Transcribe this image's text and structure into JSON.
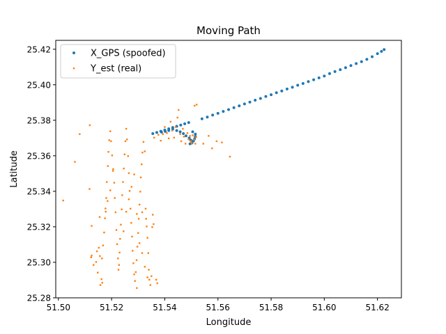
{
  "chart_data": {
    "type": "scatter",
    "title": "Moving Path",
    "xlabel": "Longitude",
    "ylabel": "Latitude",
    "xlim": [
      51.499,
      51.629
    ],
    "ylim": [
      25.28,
      25.425
    ],
    "xticks": [
      51.5,
      51.52,
      51.54,
      51.56,
      51.58,
      51.6,
      51.62
    ],
    "yticks": [
      25.28,
      25.3,
      25.32,
      25.34,
      25.36,
      25.38,
      25.4,
      25.42
    ],
    "grid": false,
    "legend": "top-left",
    "series": [
      {
        "name": "X_GPS (spoofed)",
        "color": "#1f77b4",
        "marker": "circle",
        "points": [
          [
            51.5355,
            25.3725
          ],
          [
            51.537,
            25.3731
          ],
          [
            51.5385,
            25.3738
          ],
          [
            51.54,
            25.3745
          ],
          [
            51.5415,
            25.3752
          ],
          [
            51.543,
            25.3759
          ],
          [
            51.5445,
            25.3766
          ],
          [
            51.546,
            25.3773
          ],
          [
            51.5475,
            25.378
          ],
          [
            51.549,
            25.3787
          ],
          [
            51.5505,
            25.3735
          ],
          [
            51.5515,
            25.3722
          ],
          [
            51.5515,
            25.3708
          ],
          [
            51.5512,
            25.3695
          ],
          [
            51.5508,
            25.3683
          ],
          [
            51.5502,
            25.3672
          ],
          [
            51.5495,
            25.3667
          ],
          [
            51.5502,
            25.3675
          ],
          [
            51.5498,
            25.3688
          ],
          [
            51.5492,
            25.37
          ],
          [
            51.548,
            25.3712
          ],
          [
            51.547,
            25.3725
          ],
          [
            51.5458,
            25.3735
          ],
          [
            51.5445,
            25.3742
          ],
          [
            51.543,
            25.375
          ],
          [
            51.5415,
            25.3742
          ],
          [
            51.5402,
            25.3737
          ],
          [
            51.5388,
            25.3733
          ],
          [
            51.554,
            25.3808
          ],
          [
            51.556,
            25.3818
          ],
          [
            51.558,
            25.3829
          ],
          [
            51.56,
            25.3839
          ],
          [
            51.562,
            25.385
          ],
          [
            51.564,
            25.386
          ],
          [
            51.566,
            25.3871
          ],
          [
            51.568,
            25.3881
          ],
          [
            51.57,
            25.3892
          ],
          [
            51.572,
            25.3902
          ],
          [
            51.574,
            25.3913
          ],
          [
            51.576,
            25.3923
          ],
          [
            51.578,
            25.3934
          ],
          [
            51.58,
            25.3944
          ],
          [
            51.582,
            25.3955
          ],
          [
            51.584,
            25.3965
          ],
          [
            51.586,
            25.3976
          ],
          [
            51.588,
            25.3986
          ],
          [
            51.59,
            25.3997
          ],
          [
            51.592,
            25.4007
          ],
          [
            51.594,
            25.4018
          ],
          [
            51.596,
            25.4028
          ],
          [
            51.598,
            25.4039
          ],
          [
            51.6,
            25.4049
          ],
          [
            51.602,
            25.4063
          ],
          [
            51.604,
            25.4074
          ],
          [
            51.606,
            25.4085
          ],
          [
            51.608,
            25.4096
          ],
          [
            51.61,
            25.4108
          ],
          [
            51.612,
            25.4119
          ],
          [
            51.614,
            25.413
          ],
          [
            51.616,
            25.4143
          ],
          [
            51.618,
            25.4158
          ],
          [
            51.62,
            25.4175
          ],
          [
            51.6215,
            25.4188
          ],
          [
            51.6225,
            25.4198
          ]
        ]
      },
      {
        "name": "Y_est (real)",
        "color": "#ff7f0e",
        "marker": "square",
        "points": [
          [
            51.5018,
            25.3348
          ],
          [
            51.5062,
            25.3566
          ],
          [
            51.508,
            25.3722
          ],
          [
            51.5118,
            25.3772
          ],
          [
            51.5117,
            25.3413
          ],
          [
            51.5125,
            25.3205
          ],
          [
            51.5123,
            25.3028
          ],
          [
            51.5125,
            25.3038
          ],
          [
            51.5132,
            25.2985
          ],
          [
            51.5142,
            25.3002
          ],
          [
            51.5145,
            25.3062
          ],
          [
            51.5148,
            25.2942
          ],
          [
            51.5152,
            25.3082
          ],
          [
            51.5156,
            25.3035
          ],
          [
            51.5158,
            25.2872
          ],
          [
            51.5162,
            25.2905
          ],
          [
            51.5164,
            25.3022
          ],
          [
            51.5168,
            25.3095
          ],
          [
            51.5172,
            25.3168
          ],
          [
            51.5175,
            25.3248
          ],
          [
            51.5177,
            25.3303
          ],
          [
            51.5178,
            25.3285
          ],
          [
            51.518,
            25.3362
          ],
          [
            51.5182,
            25.3452
          ],
          [
            51.5186,
            25.3542
          ],
          [
            51.5188,
            25.3622
          ],
          [
            51.5191,
            25.3688
          ],
          [
            51.5195,
            25.3738
          ],
          [
            51.5198,
            25.3682
          ],
          [
            51.5202,
            25.3602
          ],
          [
            51.5206,
            25.3525
          ],
          [
            51.521,
            25.3448
          ],
          [
            51.5212,
            25.3362
          ],
          [
            51.5215,
            25.3282
          ],
          [
            51.5218,
            25.3182
          ],
          [
            51.5221,
            25.3102
          ],
          [
            51.5224,
            25.3022
          ],
          [
            51.5226,
            25.2958
          ],
          [
            51.5228,
            25.2985
          ],
          [
            51.523,
            25.3055
          ],
          [
            51.5232,
            25.3132
          ],
          [
            51.5235,
            25.3212
          ],
          [
            51.5238,
            25.3298
          ],
          [
            51.524,
            25.3378
          ],
          [
            51.5243,
            25.3452
          ],
          [
            51.5246,
            25.3528
          ],
          [
            51.5249,
            25.3608
          ],
          [
            51.5252,
            25.3682
          ],
          [
            51.5255,
            25.3752
          ],
          [
            51.5258,
            25.3692
          ],
          [
            51.5262,
            25.3598
          ],
          [
            51.5265,
            25.3502
          ],
          [
            51.5268,
            25.3402
          ],
          [
            51.5271,
            25.3302
          ],
          [
            51.5274,
            25.3222
          ],
          [
            51.5277,
            25.3145
          ],
          [
            51.5279,
            25.3065
          ],
          [
            51.5282,
            25.2995
          ],
          [
            51.5285,
            25.2932
          ],
          [
            51.5288,
            25.2895
          ],
          [
            51.5291,
            25.2945
          ],
          [
            51.5294,
            25.3012
          ],
          [
            51.5297,
            25.3088
          ],
          [
            51.53,
            25.3165
          ],
          [
            51.5302,
            25.3245
          ],
          [
            51.5305,
            25.3325
          ],
          [
            51.5308,
            25.3398
          ],
          [
            51.531,
            25.3478
          ],
          [
            51.5313,
            25.3552
          ],
          [
            51.5316,
            25.3618
          ],
          [
            51.532,
            25.3678
          ],
          [
            51.5325,
            25.3625
          ],
          [
            51.5328,
            25.3302
          ],
          [
            51.533,
            25.3245
          ],
          [
            51.5332,
            25.3202
          ],
          [
            51.5335,
            25.3138
          ],
          [
            51.5338,
            25.3052
          ],
          [
            51.534,
            25.2958
          ],
          [
            51.5342,
            25.2902
          ],
          [
            51.5346,
            25.2872
          ],
          [
            51.535,
            25.2922
          ],
          [
            51.5353,
            25.3198
          ],
          [
            51.5355,
            25.3268
          ],
          [
            51.5358,
            25.3215
          ],
          [
            51.536,
            25.3702
          ],
          [
            51.5368,
            25.2902
          ],
          [
            51.5372,
            25.2882
          ],
          [
            51.5376,
            25.3718
          ],
          [
            51.5385,
            25.3685
          ],
          [
            51.5393,
            25.3722
          ],
          [
            51.54,
            25.3762
          ],
          [
            51.5408,
            25.3728
          ],
          [
            51.5415,
            25.3698
          ],
          [
            51.5422,
            25.3792
          ],
          [
            51.5428,
            25.3742
          ],
          [
            51.5435,
            25.3702
          ],
          [
            51.5441,
            25.3762
          ],
          [
            51.5448,
            25.3815
          ],
          [
            51.5452,
            25.3858
          ],
          [
            51.5458,
            25.3722
          ],
          [
            51.5462,
            25.3682
          ],
          [
            51.5468,
            25.3752
          ],
          [
            51.5472,
            25.3708
          ],
          [
            51.5478,
            25.3668
          ],
          [
            51.5485,
            25.3728
          ],
          [
            51.549,
            25.3692
          ],
          [
            51.5495,
            25.3712
          ],
          [
            51.5498,
            25.3682
          ],
          [
            51.5501,
            25.3672
          ],
          [
            51.5505,
            25.3715
          ],
          [
            51.551,
            25.3692
          ],
          [
            51.5512,
            25.3882
          ],
          [
            51.5515,
            25.3668
          ],
          [
            51.5518,
            25.3705
          ],
          [
            51.552,
            25.3888
          ],
          [
            51.5545,
            25.3668
          ],
          [
            51.5565,
            25.3712
          ],
          [
            51.5578,
            25.3642
          ],
          [
            51.5595,
            25.3682
          ],
          [
            51.5615,
            25.3675
          ],
          [
            51.5645,
            25.3595
          ],
          [
            51.5155,
            25.3255
          ],
          [
            51.5165,
            25.2885
          ],
          [
            51.5185,
            25.3345
          ],
          [
            51.5195,
            25.3405
          ],
          [
            51.5205,
            25.3515
          ],
          [
            51.5245,
            25.3175
          ],
          [
            51.5255,
            25.3285
          ],
          [
            51.5265,
            25.3355
          ],
          [
            51.5275,
            25.3425
          ],
          [
            51.5285,
            25.3495
          ],
          [
            51.5295,
            25.3272
          ],
          [
            51.5305,
            25.3108
          ],
          [
            51.5315,
            25.3052
          ],
          [
            51.5325,
            25.2975
          ],
          [
            51.5335,
            25.2915
          ],
          [
            51.5295,
            25.2855
          ],
          [
            51.5315,
            25.3282
          ]
        ]
      }
    ]
  }
}
